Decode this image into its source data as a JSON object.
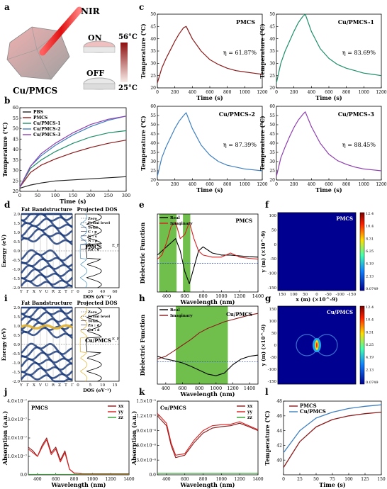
{
  "panel_letters": {
    "a": "a",
    "b": "b",
    "c": "c",
    "d": "d",
    "e": "e",
    "f": "f",
    "g": "g",
    "h": "h",
    "i": "i",
    "j": "j",
    "k": "k",
    "l": "l"
  },
  "schematic": {
    "nir": "NIR",
    "on": "ON",
    "off": "OFF",
    "t_high": "56°C",
    "t_low": "25°C",
    "material": "Cu/PMCS"
  },
  "colors": {
    "pbs": "#222222",
    "pmcs": "#8b1a1a",
    "cu1": "#1f8f6a",
    "cu2": "#3f7fc0",
    "cu3": "#8e3fb0",
    "green_fill": "#4caf1f",
    "blue_band": "#1a3a7a",
    "red": "#d62020"
  },
  "chart_data": [
    {
      "panel": "b",
      "type": "line",
      "xlabel": "Time (s)",
      "ylabel": "Temperature (℃)",
      "xlim": [
        0,
        300
      ],
      "ylim": [
        20,
        60
      ],
      "xticks": [
        0,
        50,
        100,
        150,
        200,
        250,
        300
      ],
      "yticks": [
        20,
        25,
        30,
        35,
        40,
        45,
        50,
        55,
        60
      ],
      "series": [
        {
          "name": "PBS",
          "x": [
            0,
            30,
            60,
            100,
            150,
            200,
            250,
            300
          ],
          "y": [
            21.5,
            23,
            24,
            25,
            25.5,
            26,
            26.5,
            27
          ]
        },
        {
          "name": "PMCS",
          "x": [
            0,
            30,
            60,
            100,
            150,
            200,
            250,
            300
          ],
          "y": [
            22,
            29,
            32.5,
            35.5,
            38.5,
            41,
            43,
            44.5
          ]
        },
        {
          "name": "Cu/PMCS-1",
          "x": [
            0,
            30,
            60,
            100,
            150,
            200,
            250,
            300
          ],
          "y": [
            22,
            31,
            35,
            39,
            43,
            46,
            48,
            49
          ]
        },
        {
          "name": "Cu/PMCS-2",
          "x": [
            0,
            30,
            60,
            100,
            150,
            200,
            250,
            300
          ],
          "y": [
            22,
            32,
            37,
            42,
            47,
            51,
            54,
            56
          ]
        },
        {
          "name": "Cu/PMCS-3",
          "x": [
            0,
            30,
            60,
            100,
            150,
            200,
            250,
            300
          ],
          "y": [
            22,
            32,
            38,
            43,
            48,
            52,
            54.5,
            56
          ]
        }
      ]
    },
    {
      "panel": "c1",
      "type": "line",
      "title": "PMCS",
      "annotation": "η = 61.87%",
      "xlabel": "Time (s)",
      "ylabel": "Temperature (℃)",
      "xlim": [
        0,
        1200
      ],
      "ylim": [
        20,
        50
      ],
      "xticks": [
        0,
        200,
        400,
        600,
        800,
        1000,
        1200
      ],
      "yticks": [
        20,
        25,
        30,
        35,
        40,
        45,
        50
      ],
      "x": [
        0,
        50,
        100,
        150,
        200,
        250,
        300,
        330,
        400,
        500,
        600,
        700,
        800,
        900,
        1000,
        1100,
        1200
      ],
      "y": [
        22,
        28,
        32,
        35.5,
        39,
        42,
        44.5,
        45,
        40,
        35,
        31.5,
        29.5,
        28,
        27,
        26.5,
        26,
        25.5
      ]
    },
    {
      "panel": "c2",
      "type": "line",
      "title": "Cu/PMCS-1",
      "annotation": "η = 83.69%",
      "xlabel": "Time (s)",
      "ylabel": "Temperature (℃)",
      "xlim": [
        0,
        1200
      ],
      "ylim": [
        20,
        50
      ],
      "xticks": [
        0,
        200,
        400,
        600,
        800,
        1000,
        1200
      ],
      "yticks": [
        20,
        25,
        30,
        35,
        40,
        45,
        50
      ],
      "x": [
        0,
        50,
        100,
        150,
        200,
        250,
        300,
        330,
        400,
        500,
        600,
        700,
        800,
        900,
        1000,
        1100,
        1200
      ],
      "y": [
        22,
        30,
        35,
        39,
        43,
        46.5,
        49,
        50,
        43,
        36,
        32,
        29.5,
        28,
        27,
        26,
        25.5,
        25
      ]
    },
    {
      "panel": "c3",
      "type": "line",
      "title": "Cu/PMCS-2",
      "annotation": "η = 87.39%",
      "xlabel": "Time (s)",
      "ylabel": "Temperature (℃)",
      "xlim": [
        0,
        1200
      ],
      "ylim": [
        20,
        60
      ],
      "xticks": [
        0,
        200,
        400,
        600,
        800,
        1000,
        1200
      ],
      "yticks": [
        20,
        25,
        30,
        35,
        40,
        45,
        50,
        55,
        60
      ],
      "x": [
        0,
        50,
        100,
        150,
        200,
        250,
        300,
        330,
        400,
        500,
        600,
        700,
        800,
        900,
        1000,
        1100,
        1200
      ],
      "y": [
        22,
        32,
        38,
        43,
        48,
        52,
        55,
        56.5,
        48,
        39,
        33.5,
        30,
        28,
        27,
        26,
        25.5,
        25
      ]
    },
    {
      "panel": "c4",
      "type": "line",
      "title": "Cu/PMCS-3",
      "annotation": "η = 88.45%",
      "xlabel": "Time (s)",
      "ylabel": "Temperature (℃)",
      "xlim": [
        0,
        1200
      ],
      "ylim": [
        20,
        60
      ],
      "xticks": [
        0,
        200,
        400,
        600,
        800,
        1000,
        1200
      ],
      "yticks": [
        20,
        25,
        30,
        35,
        40,
        45,
        50,
        55,
        60
      ],
      "x": [
        0,
        50,
        100,
        150,
        200,
        250,
        300,
        330,
        400,
        500,
        600,
        700,
        800,
        900,
        1000,
        1100,
        1200
      ],
      "y": [
        22,
        32,
        38,
        43.5,
        48.5,
        52.5,
        55.5,
        57,
        49,
        40,
        34,
        30.5,
        28.5,
        27,
        26,
        25.5,
        25
      ]
    },
    {
      "panel": "d",
      "type": "line",
      "label": "PMCS",
      "band_title": "Fat Bandstructure",
      "dos_title": "Projected DOS",
      "ylabel": "Energy (eV)",
      "xlabel": "DOS (eV⁻¹)",
      "kpoints": [
        "Y",
        "Γ",
        "X",
        "V",
        "U",
        "R",
        "Z",
        "T",
        "Γ"
      ],
      "yticks": [
        -2.0,
        -1.5,
        -1.0,
        -0.5,
        0.0,
        0.5,
        1.0,
        1.5,
        2.0
      ],
      "dos_xticks": [
        0,
        20,
        40,
        60
      ],
      "legend": [
        "Zero",
        "Fermi level",
        "Total",
        "C : p",
        "N : s",
        "N : p",
        "Zn : s",
        "Zn : d"
      ],
      "fermi_label": "E_F"
    },
    {
      "panel": "e",
      "type": "line",
      "title": "PMCS",
      "xlabel": "Wavelength (nm)",
      "ylabel": "Dielectric Function",
      "xlim": [
        300,
        1400
      ],
      "xticks": [
        400,
        600,
        800,
        1000,
        1200,
        1400
      ],
      "series": [
        {
          "name": "Real",
          "x": [
            300,
            350,
            400,
            450,
            500,
            550,
            600,
            650,
            700,
            750,
            800,
            900,
            1000,
            1100,
            1200,
            1300,
            1400
          ],
          "y": [
            2,
            3,
            4,
            5,
            6,
            3,
            -2,
            -5,
            -1,
            3,
            4,
            2.5,
            2,
            2,
            1.8,
            1.6,
            1.5
          ]
        },
        {
          "name": "Imaginary",
          "x": [
            300,
            350,
            400,
            450,
            500,
            550,
            600,
            650,
            700,
            750,
            800,
            900,
            1000,
            1100,
            1200,
            1300,
            1400
          ],
          "y": [
            1,
            2,
            5,
            9,
            10,
            6,
            7,
            10,
            6,
            3,
            2,
            1.5,
            1.5,
            2.5,
            1.5,
            1.2,
            1
          ]
        }
      ]
    },
    {
      "panel": "f",
      "type": "heatmap",
      "title": "PMCS",
      "xlabel": "x (m) (×10^-9)",
      "ylabel": "y (m) (×10^-9)",
      "xticks": [
        150,
        100,
        50,
        0,
        -50,
        -100,
        -150
      ],
      "yticks": [
        100,
        50,
        0,
        -50,
        -100,
        -150
      ],
      "colorbar": [
        12.4,
        10.4,
        8.31,
        6.25,
        4.19,
        2.13,
        0.0749
      ]
    },
    {
      "panel": "g",
      "type": "heatmap",
      "title": "Cu/PMCS",
      "ylabel": "y (m) (×10^-9)",
      "yticks": [
        150,
        100,
        50,
        0,
        -50,
        -100,
        -150
      ],
      "colorbar": [
        12.4,
        10.4,
        8.31,
        6.25,
        4.19,
        2.13,
        0.0749
      ]
    },
    {
      "panel": "h",
      "type": "line",
      "title": "Cu/PMCS",
      "xlabel": "Wavelength (nm)",
      "ylabel": "Dielectric Function",
      "xlim": [
        300,
        1500
      ],
      "xticks": [
        400,
        600,
        800,
        1000,
        1200,
        1400
      ],
      "series": [
        {
          "name": "Real",
          "x": [
            300,
            400,
            500,
            600,
            700,
            800,
            900,
            1000,
            1100,
            1200,
            1300,
            1400,
            1500
          ],
          "y": [
            1,
            0.5,
            0.2,
            -0.2,
            -0.8,
            -1.5,
            -2.2,
            -2.5,
            -2,
            -0.5,
            0.5,
            1,
            1.2
          ]
        },
        {
          "name": "Imaginary",
          "x": [
            300,
            400,
            500,
            600,
            700,
            800,
            900,
            1000,
            1100,
            1200,
            1300,
            1400,
            1500
          ],
          "y": [
            0.5,
            1,
            2,
            3,
            4,
            5.2,
            6,
            6.6,
            7.2,
            7.6,
            8,
            8.4,
            8.7
          ]
        }
      ]
    },
    {
      "panel": "i",
      "type": "line",
      "label": "Cu/PMCS",
      "band_title": "Fat Bandstructure",
      "dos_title": "Projected DOS",
      "ylabel": "Energy (eV)",
      "xlabel": "DOS (eV⁻¹)",
      "kpoints": [
        "Y",
        "Γ",
        "X",
        "V",
        "U",
        "R",
        "Z",
        "T",
        "Γ"
      ],
      "yticks": [
        -2.0,
        -1.5,
        -1.0,
        -0.5,
        0.0,
        0.5,
        1.0,
        1.5,
        2.0
      ],
      "dos_xticks": [
        0,
        5,
        10,
        15
      ],
      "legend": [
        "Zero",
        "Fermi level",
        "Total",
        "Zn : d",
        "Cu : d"
      ],
      "fermi_label": "E_F"
    },
    {
      "panel": "j",
      "type": "line",
      "title": "PMCS",
      "xlabel": "Wavelength (nm)",
      "ylabel": "Absorption (a.u.)",
      "xlim": [
        300,
        1400
      ],
      "xticks": [
        400,
        600,
        800,
        1000,
        1200,
        1400
      ],
      "yticks": [
        "0.0",
        "1.0×10⁻⁷",
        "2.0×10⁻⁷",
        "3.0×10⁻⁷",
        "4.0×10⁻⁷"
      ],
      "ylim": [
        0,
        4
      ],
      "series": [
        {
          "name": "xx",
          "x": [
            300,
            350,
            400,
            450,
            500,
            550,
            600,
            650,
            700,
            750,
            800,
            900,
            1000,
            1100,
            1200,
            1300,
            1400
          ],
          "y": [
            1.5,
            1.3,
            1.0,
            1.6,
            2.0,
            1.2,
            1.5,
            0.8,
            1.3,
            0.3,
            0.1,
            0.05,
            0.05,
            0.05,
            0.05,
            0.05,
            0.05
          ]
        },
        {
          "name": "yy",
          "x": [
            300,
            350,
            400,
            450,
            500,
            550,
            600,
            650,
            700,
            750,
            800,
            900,
            1000,
            1100,
            1200,
            1300,
            1400
          ],
          "y": [
            1.4,
            1.2,
            1.0,
            1.5,
            1.9,
            1.1,
            1.4,
            0.7,
            1.2,
            0.3,
            0.1,
            0.05,
            0.05,
            0.05,
            0.05,
            0.05,
            0.05
          ]
        },
        {
          "name": "zz",
          "x": [
            300,
            800,
            1400
          ],
          "y": [
            0.02,
            0.02,
            0.02
          ]
        }
      ]
    },
    {
      "panel": "k",
      "type": "line",
      "title": "Cu/PMCS",
      "xlabel": "Wavelength (nm)",
      "ylabel": "Absorption (a.u.)",
      "xlim": [
        300,
        1400
      ],
      "xticks": [
        400,
        600,
        800,
        1000,
        1200,
        1400
      ],
      "yticks": [
        "0.0",
        "3.0×10⁻⁶",
        "6.0×10⁻⁶",
        "9.0×10⁻⁶",
        "1.2×10⁻⁵",
        "1.5×10⁻⁵"
      ],
      "ylim": [
        0,
        15
      ],
      "series": [
        {
          "name": "xx",
          "x": [
            300,
            350,
            400,
            450,
            500,
            600,
            700,
            800,
            900,
            1000,
            1100,
            1200,
            1300,
            1400
          ],
          "y": [
            12,
            11,
            10,
            6,
            3.5,
            4,
            6.5,
            8.5,
            9.5,
            9.8,
            10,
            10.5,
            9.8,
            9
          ]
        },
        {
          "name": "yy",
          "x": [
            300,
            350,
            400,
            450,
            500,
            600,
            700,
            800,
            900,
            1000,
            1100,
            1200,
            1300,
            1400
          ],
          "y": [
            12.5,
            11.5,
            10.5,
            6.5,
            4,
            4.3,
            7,
            9,
            10,
            10.2,
            10.3,
            10.8,
            10,
            9.2
          ]
        },
        {
          "name": "zz",
          "x": [
            300,
            800,
            1400
          ],
          "y": [
            0.3,
            0.3,
            0.3
          ]
        }
      ]
    },
    {
      "panel": "l",
      "type": "line",
      "xlabel": "Time (s)",
      "ylabel": "Temperature (℃)",
      "xlim": [
        0,
        150
      ],
      "ylim": [
        38,
        48
      ],
      "xticks": [
        0,
        25,
        50,
        75,
        100,
        125,
        150
      ],
      "yticks": [
        40,
        42,
        44,
        46,
        48
      ],
      "series": [
        {
          "name": "PMCS",
          "x": [
            0,
            25,
            50,
            75,
            100,
            125,
            150
          ],
          "y": [
            39,
            42.5,
            44.5,
            45.5,
            46,
            46.3,
            46.5
          ]
        },
        {
          "name": "Cu/PMCS",
          "x": [
            0,
            25,
            50,
            75,
            100,
            125,
            150
          ],
          "y": [
            41,
            44,
            45.7,
            46.5,
            47,
            47.3,
            47.5
          ]
        }
      ]
    }
  ]
}
